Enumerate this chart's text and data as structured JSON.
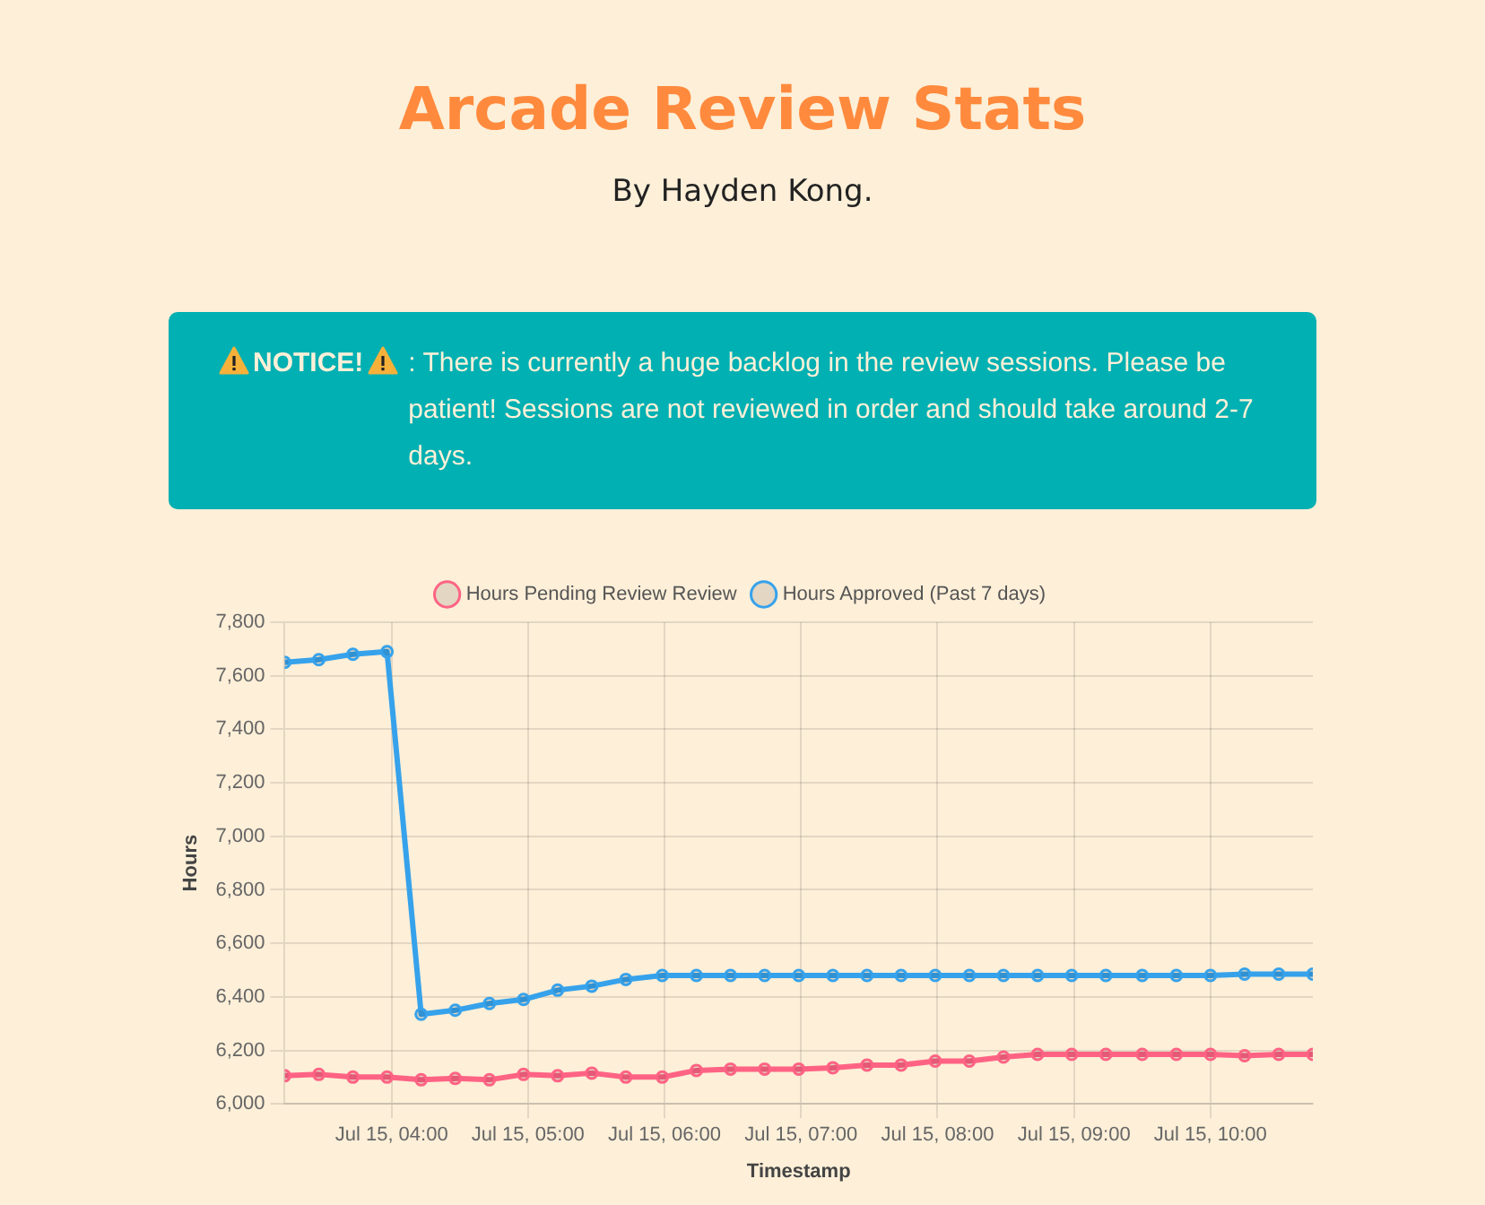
{
  "chart_data": {
    "type": "line",
    "title": "Arcade Review Stats",
    "subtitle": "By Hayden Kong.",
    "annotations": [
      "NOTICE!",
      ": There is currently a huge backlog in the review sessions. Please be patient! Sessions are not reviewed in order and should take around 2-7 days."
    ],
    "xlabel": "Timestamp",
    "ylabel": "Hours",
    "x": [
      "--07-15T03:13",
      "--07-15T03:28",
      "--07-15T03:43",
      "--07-15T03:58",
      "--07-15T04:13",
      "--07-15T04:28",
      "--07-15T04:43",
      "--07-15T04:58",
      "--07-15T05:13",
      "--07-15T05:28",
      "--07-15T05:43",
      "--07-15T05:59",
      "--07-15T06:14",
      "--07-15T06:29",
      "--07-15T06:44",
      "--07-15T06:59",
      "--07-15T07:14",
      "--07-15T07:29",
      "--07-15T07:44",
      "--07-15T07:59",
      "--07-15T08:14",
      "--07-15T08:29",
      "--07-15T08:44",
      "--07-15T08:59",
      "--07-15T09:14",
      "--07-15T09:30",
      "--07-15T09:45",
      "--07-15T10:00",
      "--07-15T10:15",
      "--07-15T10:30",
      "--07-15T10:45"
    ],
    "series": [
      {
        "name": "Hours Pending Review Review",
        "color": "#ff6384",
        "values": [
          6105,
          6110,
          6100,
          6100,
          6090,
          6095,
          6090,
          6110,
          6105,
          6115,
          6100,
          6100,
          6125,
          6130,
          6130,
          6130,
          6135,
          6145,
          6145,
          6160,
          6160,
          6175,
          6185,
          6185,
          6185,
          6185,
          6185,
          6185,
          6180,
          6185,
          6185
        ]
      },
      {
        "name": "Hours Approved (Past 7 days)",
        "color": "#36a2eb",
        "values": [
          7650,
          7660,
          7680,
          7690,
          6335,
          6350,
          6375,
          6390,
          6425,
          6440,
          6465,
          6480,
          6480,
          6480,
          6480,
          6480,
          6480,
          6480,
          6480,
          6480,
          6480,
          6480,
          6480,
          6480,
          6480,
          6480,
          6480,
          6480,
          6485,
          6485,
          6485
        ]
      }
    ],
    "xlim": [
      "--07-15T03:13",
      "--07-15T10:45"
    ],
    "xticks": [
      {
        "value": "--07-15T04:00",
        "label": "Jul 15, 04:00"
      },
      {
        "value": "--07-15T05:00",
        "label": "Jul 15, 05:00"
      },
      {
        "value": "--07-15T06:00",
        "label": "Jul 15, 06:00"
      },
      {
        "value": "--07-15T07:00",
        "label": "Jul 15, 07:00"
      },
      {
        "value": "--07-15T08:00",
        "label": "Jul 15, 08:00"
      },
      {
        "value": "--07-15T09:00",
        "label": "Jul 15, 09:00"
      },
      {
        "value": "--07-15T10:00",
        "label": "Jul 15, 10:00"
      }
    ],
    "ylim": [
      6000,
      7800
    ],
    "yticks": [
      {
        "value": 6000,
        "label": "6,000"
      },
      {
        "value": 6200,
        "label": "6,200"
      },
      {
        "value": 6400,
        "label": "6,400"
      },
      {
        "value": 6600,
        "label": "6,600"
      },
      {
        "value": 6800,
        "label": "6,800"
      },
      {
        "value": 7000,
        "label": "7,000"
      },
      {
        "value": 7200,
        "label": "7,200"
      },
      {
        "value": 7400,
        "label": "7,400"
      },
      {
        "value": 7600,
        "label": "7,600"
      },
      {
        "value": 7800,
        "label": "7,800"
      }
    ],
    "grid": true,
    "legend": "top",
    "marker": "circle",
    "line_style": "solid"
  }
}
